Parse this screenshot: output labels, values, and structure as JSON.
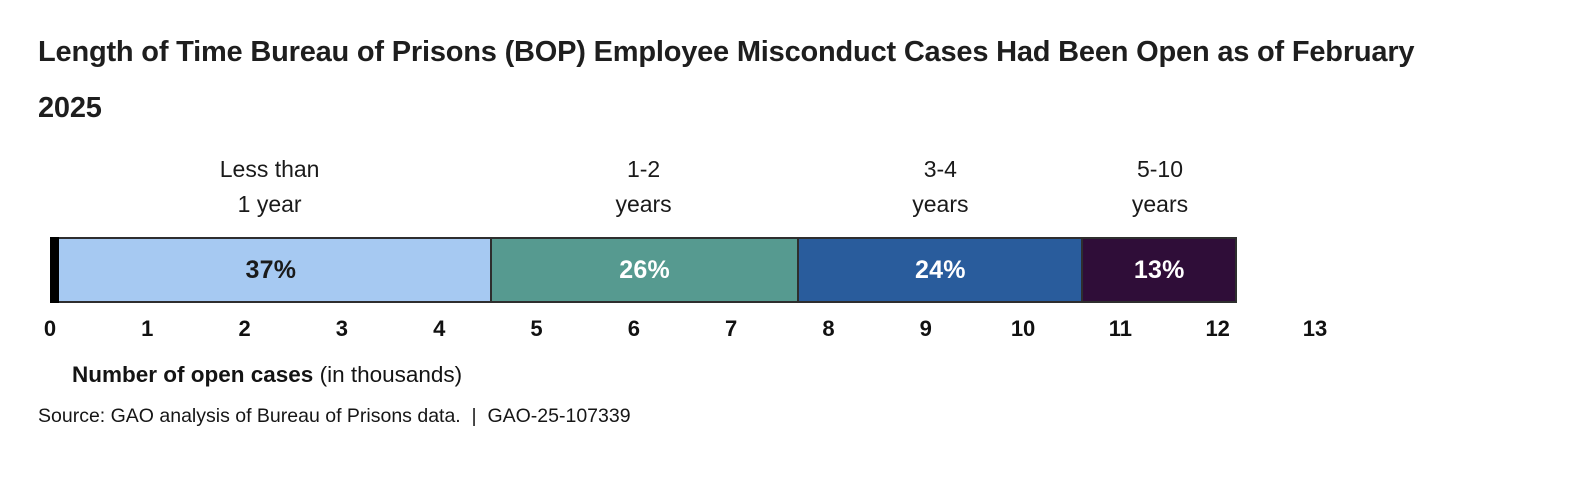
{
  "header": {
    "title_lines": [
      "Length of Time Bureau of Prisons (BOP) Employee Misconduct Cases Had Been Open as of February",
      "2025"
    ]
  },
  "chart_data": {
    "type": "bar",
    "subtype": "horizontal-stacked-single-bar",
    "title": "Length of Time Bureau of Prisons (BOP) Employee Misconduct Cases Had Been Open as of February 2025",
    "xlabel_bold": "Number of open cases",
    "xlabel_note": " (in thousands)",
    "axis_max": 13,
    "total_thousands": 12.2,
    "x_ticks": [
      0,
      1,
      2,
      3,
      4,
      5,
      6,
      7,
      8,
      9,
      10,
      11,
      12,
      13
    ],
    "grid": false,
    "legend": "none",
    "segments": [
      {
        "id": "less-than-1-year",
        "label_lines": [
          "Less than",
          "1 year"
        ],
        "percent": 37,
        "value_label": "37%",
        "color": "#a6c9f2",
        "text_color": "#1a1a1a"
      },
      {
        "id": "1-2-years",
        "label_lines": [
          "1-2",
          "years"
        ],
        "percent": 26,
        "value_label": "26%",
        "color": "#569a90",
        "text_color": "#ffffff"
      },
      {
        "id": "3-4-years",
        "label_lines": [
          "3-4",
          "years"
        ],
        "percent": 24,
        "value_label": "24%",
        "color": "#295c9c",
        "text_color": "#ffffff"
      },
      {
        "id": "5-10-years",
        "label_lines": [
          "5-10",
          "years"
        ],
        "percent": 13,
        "value_label": "13%",
        "color": "#2f0d38",
        "text_color": "#ffffff"
      }
    ]
  },
  "footer": {
    "source": "Source: GAO analysis of Bureau of Prisons data.  |  GAO-25-107339"
  }
}
